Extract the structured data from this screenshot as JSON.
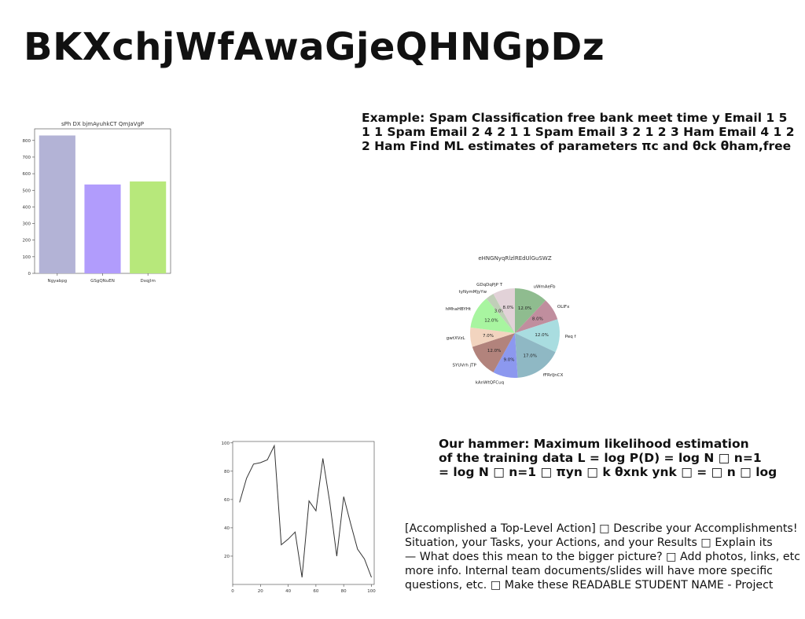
{
  "slide": {
    "title": "BKXchjWfAwaGjeQHNGpDz"
  },
  "text_blocks": {
    "spam_example": {
      "lines": [
        "Example: Spam Classification free bank meet time y Email 1 5",
        "1 1 Spam Email 2 4 2 1 1 Spam Email 3 2 1 2 3 Ham Email 4 1 2",
        "2 Ham Find ML estimates of parameters πc and θck θham,free"
      ]
    },
    "hammer": {
      "lines": [
        "Our hammer: Maximum likelihood estimation",
        "of the training data L = log P(D) = log N □ n=1",
        "= log N □ n=1 □ πyn □ k θxnk ynk □ = □ n □ log"
      ]
    },
    "accomplished": {
      "lines": [
        "[Accomplished a Top-Level Action] □ Describe your Accomplishments!",
        "Situation, your Tasks, your Actions, and your Results □ Explain its",
        "— What does this mean to the bigger picture? □ Add photos, links, etc",
        "more info. Internal team documents/slides will have more specific",
        "questions, etc. □ Make these READABLE STUDENT NAME - Project"
      ]
    }
  },
  "chart_data": [
    {
      "type": "bar",
      "title": "sPh DX bjmAyuhkCT QmJaVgP",
      "categories": [
        "Ngyabpg",
        "GSgQNuEN",
        "Dxqjlm"
      ],
      "values": [
        830,
        535,
        553
      ],
      "colors": [
        "#b3b3d6",
        "#b19cfc",
        "#b7e87b"
      ],
      "ylim": [
        0,
        870
      ],
      "yticks": [
        0,
        100,
        200,
        300,
        400,
        500,
        600,
        700,
        800
      ],
      "xlabel": "",
      "ylabel": ""
    },
    {
      "type": "pie",
      "title": "eHNGNyqRlzlREdUlGuSWZ",
      "slices": [
        {
          "label": "uWmAeFb",
          "value": 12.0,
          "pct": "12.0%",
          "color": "#8fbc8f"
        },
        {
          "label": "OLIFx",
          "value": 8.0,
          "pct": "8.0%",
          "color": "#c08e9e"
        },
        {
          "label": "Peq f",
          "value": 12.0,
          "pct": "12.0%",
          "color": "#a9dde0"
        },
        {
          "label": "fFRrIJnCX",
          "value": 17.0,
          "pct": "17.0%",
          "color": "#8fb8c4"
        },
        {
          "label": "kAnWtQFCuq",
          "value": 9.0,
          "pct": "9.0%",
          "color": "#8c98ef"
        },
        {
          "label": "SYUVrh jTP",
          "value": 12.0,
          "pct": "12.0%",
          "color": "#b2837c"
        },
        {
          "label": "gwtXVzL",
          "value": 7.0,
          "pct": "7.0%",
          "color": "#f2d4bf"
        },
        {
          "label": "hMhaHBYHt",
          "value": 12.0,
          "pct": "12.0%",
          "color": "#a8f5a0"
        },
        {
          "label": "tyNymMjyYw",
          "value": 3.0,
          "pct": "3.0%",
          "color": "#c0cfb8"
        },
        {
          "label": "GDqDqPjP T",
          "value": 8.0,
          "pct": "8.0%",
          "color": "#e2d2d8"
        }
      ]
    },
    {
      "type": "line",
      "title": "",
      "x": [
        5,
        10,
        15,
        20,
        25,
        30,
        35,
        40,
        45,
        50,
        55,
        60,
        65,
        70,
        75,
        80,
        85,
        90,
        95,
        100
      ],
      "y": [
        58,
        75,
        85,
        86,
        88,
        98,
        28,
        32,
        37,
        5,
        59,
        52,
        89,
        58,
        20,
        62,
        43,
        25,
        18,
        5
      ],
      "xlim": [
        0,
        102
      ],
      "ylim": [
        0,
        101
      ],
      "xticks": [
        0,
        20,
        40,
        60,
        80,
        100
      ],
      "yticks": [
        20,
        40,
        60,
        80,
        100
      ],
      "color": "#333333",
      "xlabel": "",
      "ylabel": ""
    }
  ]
}
